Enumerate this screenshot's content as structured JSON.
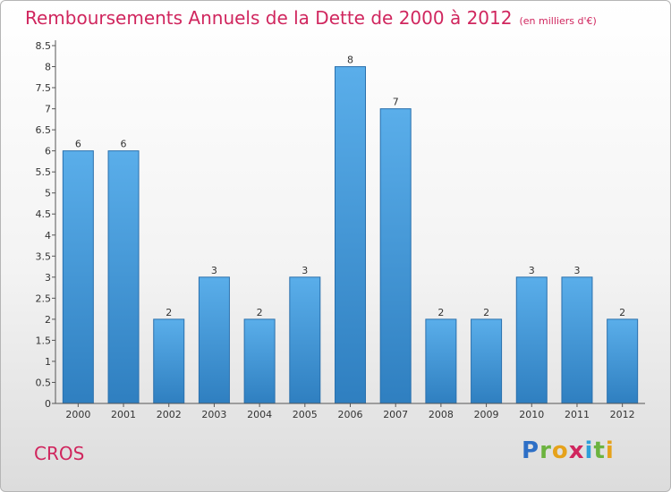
{
  "header": {
    "title": "Remboursements Annuels de la Dette de 2000 à 2012",
    "subtitle": "(en milliers d'€)"
  },
  "footer": {
    "commune": "CROS",
    "logo_letters": [
      {
        "ch": "P",
        "color": "#2d6fc6"
      },
      {
        "ch": "r",
        "color": "#6cb33f"
      },
      {
        "ch": "o",
        "color": "#e6a21b"
      },
      {
        "ch": "x",
        "color": "#d0265e"
      },
      {
        "ch": "i",
        "color": "#2d9fd9"
      },
      {
        "ch": "t",
        "color": "#6cb33f"
      },
      {
        "ch": "i",
        "color": "#e6a21b"
      }
    ]
  },
  "chart_data": {
    "type": "bar",
    "title": "Remboursements Annuels de la Dette de 2000 à 2012",
    "subtitle": "(en milliers d'€)",
    "xlabel": "",
    "ylabel": "",
    "categories": [
      "2000",
      "2001",
      "2002",
      "2003",
      "2004",
      "2005",
      "2006",
      "2007",
      "2008",
      "2009",
      "2010",
      "2011",
      "2012"
    ],
    "values": [
      6,
      6,
      2,
      3,
      2,
      3,
      8,
      7,
      2,
      2,
      3,
      3,
      2
    ],
    "data_labels": [
      "6",
      "6",
      "2",
      "3",
      "2",
      "3",
      "8",
      "7",
      "2",
      "2",
      "3",
      "3",
      "2"
    ],
    "ylim": [
      0,
      8.5
    ],
    "yticks": [
      0,
      0.5,
      1,
      1.5,
      2,
      2.5,
      3,
      3.5,
      4,
      4.5,
      5,
      5.5,
      6,
      6.5,
      7,
      7.5,
      8,
      8.5
    ],
    "ytick_labels": [
      "0",
      "0.5",
      "1",
      "1.5",
      "2",
      "2.5",
      "3",
      "3.5",
      "4",
      "4.5",
      "5",
      "5.5",
      "6",
      "6.5",
      "7",
      "7.5",
      "8",
      "8.5"
    ],
    "grid": false,
    "bar_color": "#4a9fe0"
  }
}
